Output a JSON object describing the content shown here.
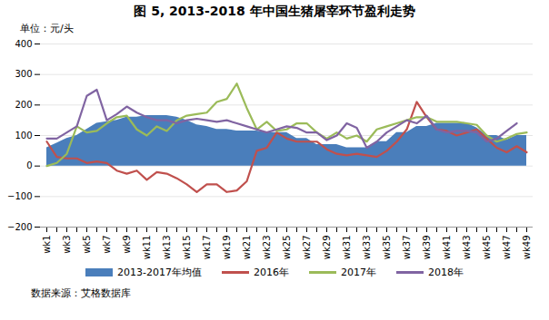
{
  "chart_data": {
    "type": "line",
    "title": "图 5, 2013-2018 年中国生猪屠宰环节盈利走势",
    "y_label": "单位：元/头",
    "source": "数据来源：艾格数据库",
    "categories": [
      "wk1",
      null,
      "wk3",
      null,
      "wk5",
      null,
      "wk7",
      null,
      "wk9",
      null,
      "wk11",
      null,
      "wk13",
      null,
      "wk15",
      null,
      "wk17",
      null,
      "wk19",
      null,
      "wk21",
      null,
      "wk23",
      null,
      "wk25",
      null,
      "wk27",
      null,
      "wk29",
      null,
      "wk31",
      null,
      "wk33",
      null,
      "wk35",
      null,
      "wk37",
      null,
      "wk39",
      null,
      "wk41",
      null,
      "wk43",
      null,
      "wk45",
      null,
      "wk47",
      null,
      "wk49"
    ],
    "ylim": [
      -200,
      400
    ],
    "yticks": [
      -200,
      -100,
      0,
      100,
      200,
      300,
      400
    ],
    "grid": true,
    "legend": "bottom",
    "series": [
      {
        "name": "2013-2017年均值",
        "type": "area",
        "color": "#4a7ebb",
        "values": [
          60,
          75,
          90,
          100,
          120,
          140,
          145,
          150,
          160,
          160,
          165,
          165,
          165,
          160,
          150,
          135,
          130,
          120,
          120,
          115,
          115,
          115,
          110,
          110,
          110,
          90,
          90,
          70,
          70,
          70,
          60,
          60,
          60,
          80,
          80,
          110,
          110,
          130,
          130,
          140,
          140,
          140,
          140,
          125,
          100,
          100,
          85,
          100,
          100
        ]
      },
      {
        "name": "2016年",
        "type": "line",
        "color": "#c0504d",
        "values": [
          80,
          30,
          25,
          25,
          10,
          15,
          10,
          -15,
          -25,
          -15,
          -45,
          -20,
          -25,
          -40,
          -60,
          -85,
          -60,
          -60,
          -85,
          -80,
          -50,
          50,
          60,
          110,
          90,
          80,
          80,
          80,
          55,
          40,
          35,
          40,
          35,
          30,
          50,
          80,
          120,
          210,
          160,
          120,
          115,
          100,
          110,
          120,
          90,
          60,
          45,
          65,
          45
        ]
      },
      {
        "name": "2017年",
        "type": "line",
        "color": "#9bbb59",
        "values": [
          0,
          10,
          40,
          130,
          110,
          115,
          140,
          160,
          165,
          120,
          100,
          130,
          115,
          150,
          165,
          170,
          175,
          210,
          220,
          270,
          190,
          120,
          145,
          115,
          120,
          140,
          140,
          110,
          90,
          110,
          90,
          100,
          80,
          120,
          130,
          140,
          150,
          160,
          160,
          145,
          145,
          145,
          140,
          135,
          100,
          80,
          90,
          105,
          110
        ]
      },
      {
        "name": "2018年",
        "type": "line",
        "color": "#8064a2",
        "values": [
          90,
          90,
          110,
          130,
          230,
          250,
          150,
          170,
          195,
          175,
          160,
          150,
          150,
          140,
          150,
          155,
          150,
          145,
          150,
          140,
          130,
          120,
          110,
          120,
          130,
          125,
          110,
          110,
          85,
          100,
          140,
          125,
          60,
          80,
          110,
          130,
          150,
          140,
          165,
          120,
          110,
          115,
          115,
          110,
          80,
          90,
          115,
          140,
          null
        ]
      }
    ]
  }
}
